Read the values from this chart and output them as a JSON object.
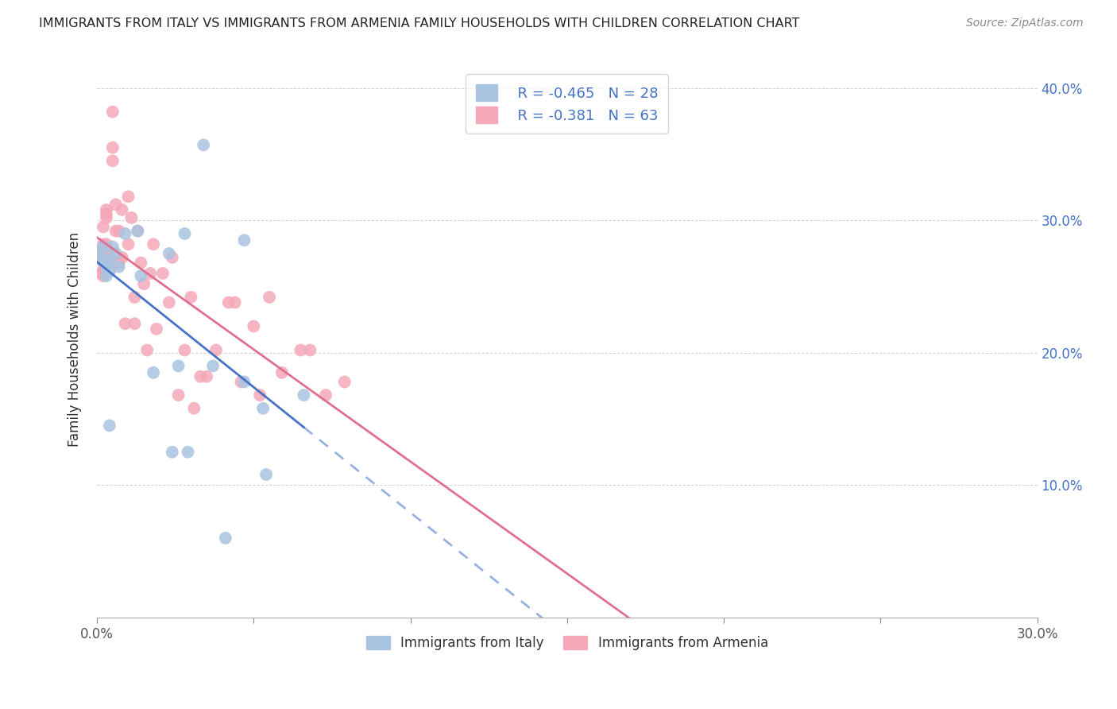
{
  "title": "IMMIGRANTS FROM ITALY VS IMMIGRANTS FROM ARMENIA FAMILY HOUSEHOLDS WITH CHILDREN CORRELATION CHART",
  "source": "Source: ZipAtlas.com",
  "xlabel_italy": "Immigrants from Italy",
  "xlabel_armenia": "Immigrants from Armenia",
  "ylabel": "Family Households with Children",
  "italy_color": "#a8c4e0",
  "armenia_color": "#f4a8b8",
  "italy_line_color": "#4472c4",
  "armenia_line_color": "#e07090",
  "italy_R": -0.465,
  "italy_N": 28,
  "armenia_R": -0.381,
  "armenia_N": 63,
  "xlim": [
    0.0,
    0.3
  ],
  "ylim": [
    0.0,
    0.42
  ],
  "xticks_show": [
    0.0,
    0.3
  ],
  "yticks": [
    0.1,
    0.2,
    0.3,
    0.4
  ],
  "xtick_minor": [
    0.05,
    0.1,
    0.15,
    0.2,
    0.25
  ],
  "italy_x": [
    0.001,
    0.002,
    0.002,
    0.003,
    0.003,
    0.004,
    0.004,
    0.004,
    0.005,
    0.006,
    0.007,
    0.009,
    0.013,
    0.014,
    0.018,
    0.023,
    0.024,
    0.026,
    0.028,
    0.029,
    0.034,
    0.037,
    0.041,
    0.047,
    0.047,
    0.053,
    0.054,
    0.066
  ],
  "italy_y": [
    0.275,
    0.28,
    0.27,
    0.265,
    0.258,
    0.262,
    0.27,
    0.145,
    0.28,
    0.275,
    0.265,
    0.29,
    0.292,
    0.258,
    0.185,
    0.275,
    0.125,
    0.19,
    0.29,
    0.125,
    0.357,
    0.19,
    0.06,
    0.285,
    0.178,
    0.158,
    0.108,
    0.168
  ],
  "armenia_x": [
    0.001,
    0.001,
    0.001,
    0.002,
    0.002,
    0.002,
    0.002,
    0.002,
    0.002,
    0.003,
    0.003,
    0.003,
    0.003,
    0.003,
    0.003,
    0.003,
    0.003,
    0.004,
    0.004,
    0.004,
    0.005,
    0.005,
    0.005,
    0.006,
    0.006,
    0.007,
    0.007,
    0.008,
    0.008,
    0.009,
    0.01,
    0.01,
    0.011,
    0.012,
    0.012,
    0.013,
    0.014,
    0.015,
    0.016,
    0.017,
    0.018,
    0.019,
    0.021,
    0.023,
    0.024,
    0.026,
    0.028,
    0.03,
    0.031,
    0.033,
    0.035,
    0.038,
    0.042,
    0.044,
    0.046,
    0.05,
    0.052,
    0.055,
    0.059,
    0.065,
    0.068,
    0.073,
    0.079
  ],
  "armenia_y": [
    0.275,
    0.275,
    0.26,
    0.282,
    0.295,
    0.28,
    0.268,
    0.258,
    0.262,
    0.278,
    0.302,
    0.305,
    0.268,
    0.282,
    0.268,
    0.308,
    0.268,
    0.272,
    0.268,
    0.262,
    0.382,
    0.355,
    0.345,
    0.312,
    0.292,
    0.292,
    0.268,
    0.272,
    0.308,
    0.222,
    0.318,
    0.282,
    0.302,
    0.242,
    0.222,
    0.292,
    0.268,
    0.252,
    0.202,
    0.26,
    0.282,
    0.218,
    0.26,
    0.238,
    0.272,
    0.168,
    0.202,
    0.242,
    0.158,
    0.182,
    0.182,
    0.202,
    0.238,
    0.238,
    0.178,
    0.22,
    0.168,
    0.242,
    0.185,
    0.202,
    0.202,
    0.168,
    0.178
  ]
}
